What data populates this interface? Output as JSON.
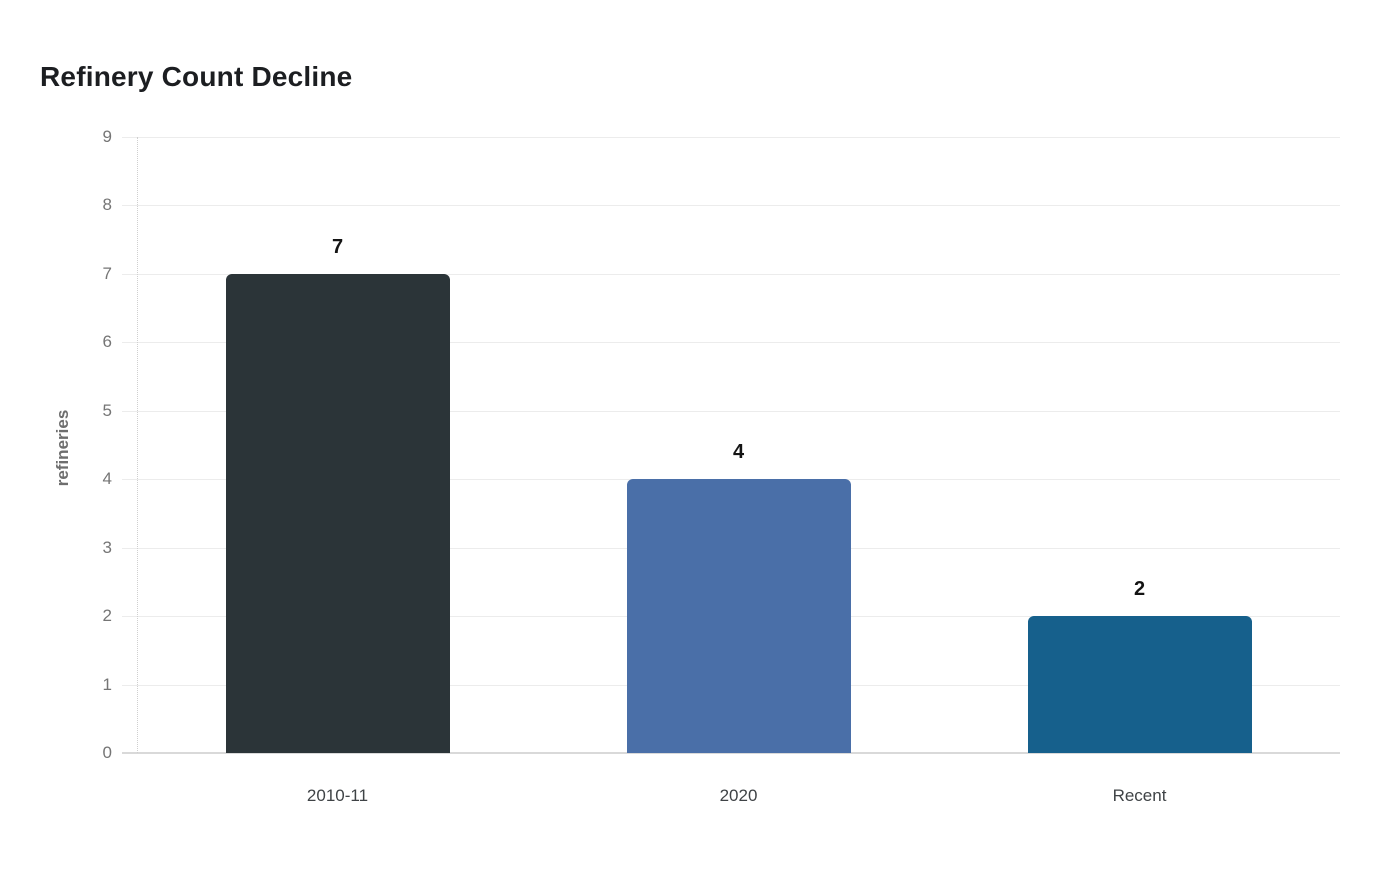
{
  "chart": {
    "title": "Refinery Count Decline"
  },
  "chart_data": {
    "type": "bar",
    "title": "Refinery Count Decline",
    "categories": [
      "2010-11",
      "2020",
      "Recent"
    ],
    "values": [
      7,
      4,
      2
    ],
    "value_labels": [
      "7",
      "4",
      "2"
    ],
    "bar_colors": [
      "#2b3438",
      "#4a6fa8",
      "#16608c"
    ],
    "xlabel": "",
    "ylabel": "refineries",
    "ylim": [
      0,
      9
    ],
    "yticks": [
      0,
      1,
      2,
      3,
      4,
      5,
      6,
      7,
      8,
      9
    ],
    "grid": true,
    "legend": false
  },
  "style": {
    "background": "#ffffff",
    "grid_color": "#ececec",
    "baseline_color": "#d9d9d9",
    "axis_line_color": "#cfcfcf",
    "y_tick_color": "#757575",
    "x_tick_color": "#3f4346",
    "ylabel_color": "#6e6e6e",
    "title_color": "#1c1e21",
    "value_label_color": "#141414"
  }
}
